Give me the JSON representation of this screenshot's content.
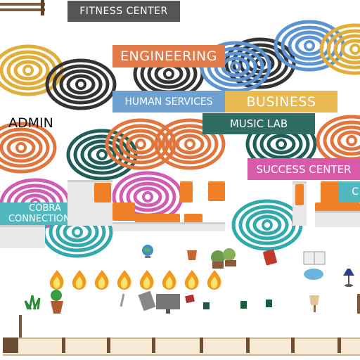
{
  "signs": {
    "fitness": "FITNESS CENTER",
    "engineering": "ENGINEERING",
    "human_services": "HUMAN SERVICES",
    "business": "BUSINESS",
    "admin": "ADMIN",
    "music_lab": "MUSIC LAB",
    "success_center": "SUCCESS CENTER",
    "cobra_line1": "COBRA",
    "cobra_line2": "CONNECTIONS",
    "partial_c": "C"
  },
  "colors": {
    "gray_sign": "#555555",
    "orange": "#e27a4a",
    "blue": "#6ea0d0",
    "gold": "#e8b94e",
    "teal_dark": "#2f6d64",
    "pink": "#d95aa8",
    "teal": "#52b8bf",
    "swirl_orange": "#e0753e",
    "swirl_blue": "#5b93d3",
    "swirl_gold": "#e2ae3a",
    "swirl_dark": "#333333",
    "swirl_green": "#1f5e58",
    "swirl_pink": "#cf5cb5",
    "swirl_teal": "#32a9ad"
  },
  "icons": [
    "flame-icon",
    "potted-plant-icon",
    "globe-icon",
    "book-icon",
    "open-book-icon",
    "lamp-icon",
    "mug-icon",
    "computer-icon"
  ]
}
